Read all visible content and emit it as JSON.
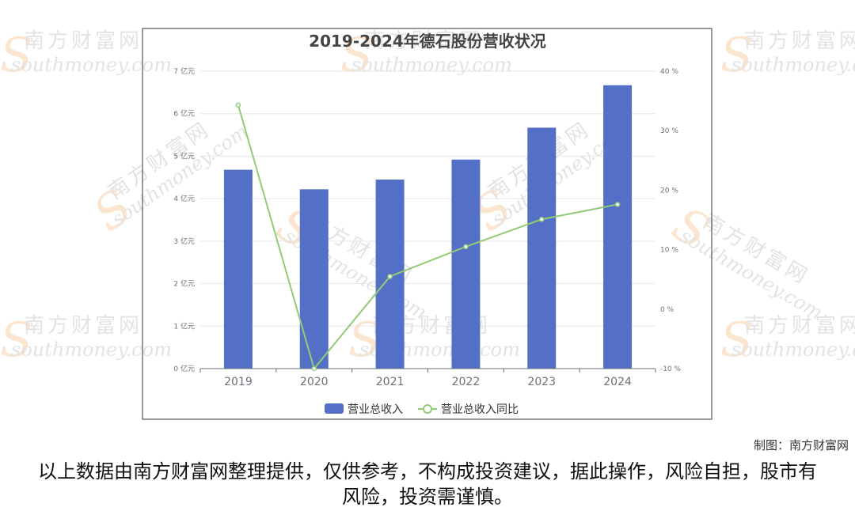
{
  "chart_data": {
    "type": "bar",
    "title": "2019-2024年德石股份营收状况",
    "categories": [
      "2019",
      "2020",
      "2021",
      "2022",
      "2023",
      "2024"
    ],
    "series": [
      {
        "name": "营业总收入",
        "type": "bar",
        "axis": "left",
        "values": [
          4.68,
          4.22,
          4.45,
          4.92,
          5.67,
          6.67
        ],
        "color": "#5470c6"
      },
      {
        "name": "营业总收入同比",
        "type": "line",
        "axis": "right",
        "values": [
          34.3,
          -10.0,
          5.5,
          10.5,
          15.1,
          17.6
        ],
        "color": "#91cc75"
      }
    ],
    "y_left": {
      "ylim": [
        0,
        7
      ],
      "ticks": [
        0,
        1,
        2,
        3,
        4,
        5,
        6,
        7
      ],
      "tick_labels": [
        "0 亿元",
        "1 亿元",
        "2 亿元",
        "3 亿元",
        "4 亿元",
        "5 亿元",
        "6 亿元",
        "7 亿元"
      ]
    },
    "y_right": {
      "ylim": [
        -10,
        40
      ],
      "ticks": [
        -10,
        0,
        10,
        20,
        30,
        40
      ],
      "tick_labels": [
        "-10 %",
        "0 %",
        "10 %",
        "20 %",
        "30 %",
        "40 %"
      ]
    },
    "grid": true,
    "legend_position": "bottom-center"
  },
  "credit": "制图：南方财富网",
  "disclaimer": "以上数据由南方财富网整理提供，仅供参考，不构成投资建议，据此操作，风险自担，股市有风险，投资需谨慎。",
  "watermark": {
    "cn": "南方财富网",
    "en": "southmoney.com"
  }
}
